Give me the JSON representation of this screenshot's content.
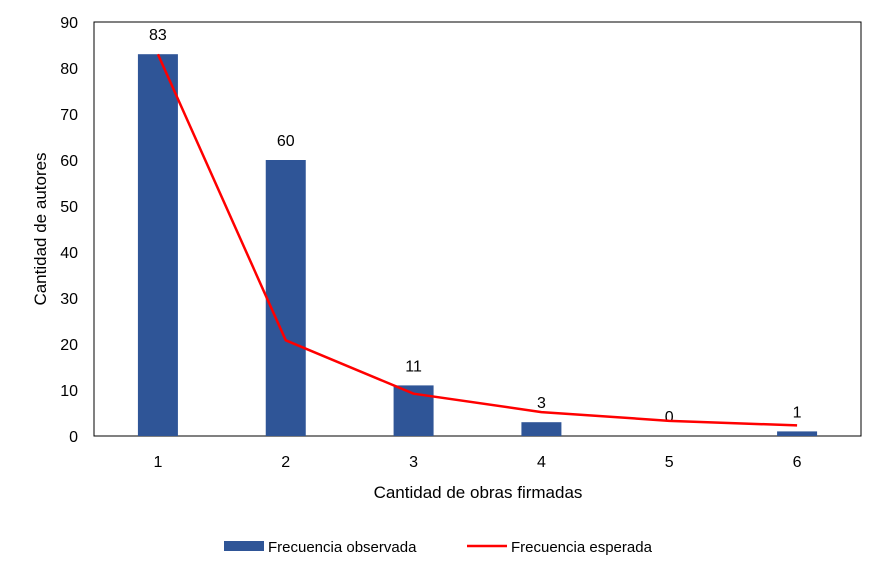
{
  "chart_data": {
    "type": "bar",
    "categories": [
      "1",
      "2",
      "3",
      "4",
      "5",
      "6"
    ],
    "series": [
      {
        "name": "Frecuencia observada",
        "type": "bar",
        "color": "#2F5597",
        "values": [
          83,
          60,
          11,
          3,
          0,
          1
        ],
        "data_labels": [
          "83",
          "60",
          "11",
          "3",
          "0",
          "1"
        ]
      },
      {
        "name": "Frecuencia esperada",
        "type": "line",
        "color": "#FF0000",
        "values": [
          83,
          20.8,
          9.2,
          5.2,
          3.3,
          2.3
        ]
      }
    ],
    "xlabel": "Cantidad de obras firmadas",
    "ylabel": "Cantidad de autores",
    "ylim": [
      0,
      90
    ],
    "yticks": [
      "0",
      "10",
      "20",
      "30",
      "40",
      "50",
      "60",
      "70",
      "80",
      "90"
    ],
    "grid": false,
    "legend_position": "bottom"
  }
}
